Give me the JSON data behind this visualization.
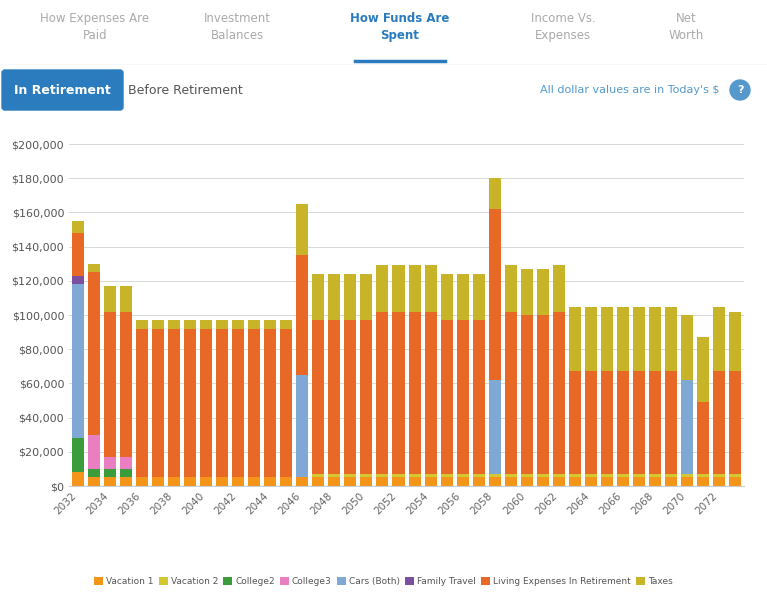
{
  "title": "How Funds Are Spent In Retirement",
  "years": [
    2032,
    2033,
    2034,
    2035,
    2036,
    2037,
    2038,
    2039,
    2040,
    2041,
    2042,
    2043,
    2044,
    2045,
    2046,
    2047,
    2048,
    2049,
    2050,
    2051,
    2052,
    2053,
    2054,
    2055,
    2056,
    2057,
    2058,
    2059,
    2060,
    2061,
    2062,
    2063,
    2064,
    2065,
    2066,
    2067,
    2068,
    2069,
    2070,
    2071,
    2072,
    2073
  ],
  "vacation1": [
    8000,
    5000,
    5000,
    5000,
    5000,
    5000,
    5000,
    5000,
    5000,
    5000,
    5000,
    5000,
    5000,
    5000,
    5000,
    5000,
    5000,
    5000,
    5000,
    5000,
    5000,
    5000,
    5000,
    5000,
    5000,
    5000,
    5000,
    5000,
    5000,
    5000,
    5000,
    5000,
    5000,
    5000,
    5000,
    5000,
    5000,
    5000,
    5000,
    5000,
    5000,
    5000
  ],
  "vacation2": [
    0,
    0,
    0,
    0,
    0,
    0,
    0,
    0,
    0,
    0,
    0,
    0,
    0,
    0,
    0,
    2000,
    2000,
    2000,
    2000,
    2000,
    2000,
    2000,
    2000,
    2000,
    2000,
    2000,
    2000,
    2000,
    2000,
    2000,
    2000,
    2000,
    2000,
    2000,
    2000,
    2000,
    2000,
    2000,
    2000,
    2000,
    2000,
    2000
  ],
  "college2": [
    20000,
    5000,
    5000,
    5000,
    0,
    0,
    0,
    0,
    0,
    0,
    0,
    0,
    0,
    0,
    0,
    0,
    0,
    0,
    0,
    0,
    0,
    0,
    0,
    0,
    0,
    0,
    0,
    0,
    0,
    0,
    0,
    0,
    0,
    0,
    0,
    0,
    0,
    0,
    0,
    0,
    0,
    0
  ],
  "college3": [
    0,
    20000,
    7000,
    7000,
    0,
    0,
    0,
    0,
    0,
    0,
    0,
    0,
    0,
    0,
    0,
    0,
    0,
    0,
    0,
    0,
    0,
    0,
    0,
    0,
    0,
    0,
    0,
    0,
    0,
    0,
    0,
    0,
    0,
    0,
    0,
    0,
    0,
    0,
    0,
    0,
    0,
    0
  ],
  "cars": [
    90000,
    0,
    0,
    0,
    0,
    0,
    0,
    0,
    0,
    0,
    0,
    0,
    0,
    0,
    60000,
    0,
    0,
    0,
    0,
    0,
    0,
    0,
    0,
    0,
    0,
    0,
    55000,
    0,
    0,
    0,
    0,
    0,
    0,
    0,
    0,
    0,
    0,
    0,
    55000,
    0,
    0,
    0
  ],
  "family_travel": [
    5000,
    0,
    0,
    0,
    0,
    0,
    0,
    0,
    0,
    0,
    0,
    0,
    0,
    0,
    0,
    0,
    0,
    0,
    0,
    0,
    0,
    0,
    0,
    0,
    0,
    0,
    0,
    0,
    0,
    0,
    0,
    0,
    0,
    0,
    0,
    0,
    0,
    0,
    0,
    0,
    0,
    0
  ],
  "living": [
    25000,
    95000,
    85000,
    85000,
    87000,
    87000,
    87000,
    87000,
    87000,
    87000,
    87000,
    87000,
    87000,
    87000,
    70000,
    90000,
    90000,
    90000,
    90000,
    95000,
    95000,
    95000,
    95000,
    90000,
    90000,
    90000,
    100000,
    95000,
    93000,
    93000,
    95000,
    60000,
    60000,
    60000,
    60000,
    60000,
    60000,
    60000,
    0,
    42000,
    60000,
    60000
  ],
  "taxes": [
    7000,
    5000,
    15000,
    15000,
    5000,
    5000,
    5000,
    5000,
    5000,
    5000,
    5000,
    5000,
    5000,
    5000,
    30000,
    27000,
    27000,
    27000,
    27000,
    27000,
    27000,
    27000,
    27000,
    27000,
    27000,
    27000,
    18000,
    27000,
    27000,
    27000,
    27000,
    38000,
    38000,
    38000,
    38000,
    38000,
    38000,
    38000,
    38000,
    38000,
    38000,
    35000
  ],
  "colors": {
    "vacation1": "#f4941a",
    "vacation2": "#d4c832",
    "college2": "#3a9c3a",
    "college3": "#e97fc0",
    "cars": "#7fa8d4",
    "family_travel": "#7b4fa0",
    "living": "#e86826",
    "taxes": "#c8b428"
  },
  "legend_labels": [
    "Vacation 1",
    "Vacation 2",
    "College2",
    "College3",
    "Cars (Both)",
    "Family Travel",
    "Living Expenses In Retirement",
    "Taxes"
  ],
  "ylim": [
    0,
    210000
  ],
  "yticks": [
    0,
    20000,
    40000,
    60000,
    80000,
    100000,
    120000,
    140000,
    160000,
    180000,
    200000
  ],
  "bg_color": "#ffffff",
  "grid_color": "#d8d8d8",
  "title_color": "#555555",
  "nav_items": [
    "How Expenses Are\nPaid",
    "Investment\nBalances",
    "How Funds Are\nSpent",
    "Income Vs.\nExpenses",
    "Net\nWorth"
  ],
  "active_nav": 2,
  "nav_color_active": "#2b7bbf",
  "nav_color_inactive": "#aaaaaa",
  "nav_underline_color": "#2b7bbf",
  "btn_bg": "#2b7bbf",
  "btn_text": "In Retirement",
  "btn2_text": "Before Retirement",
  "note_text": "All dollar values are in Today's $"
}
